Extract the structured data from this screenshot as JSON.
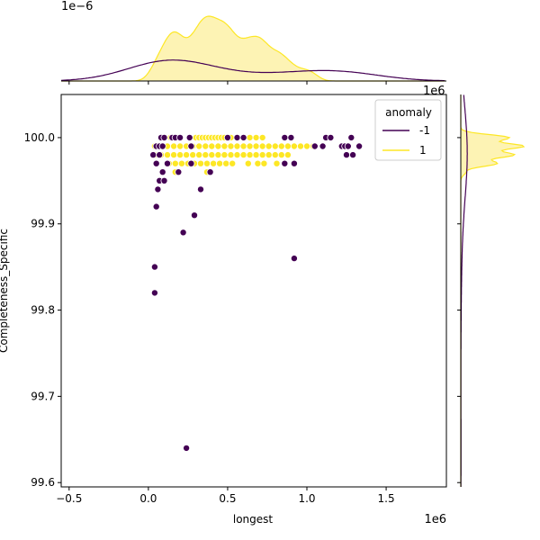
{
  "chart_data": {
    "type": "scatter",
    "xlabel": "longest",
    "ylabel": "Completeness_Specific",
    "x_offset_text": "1e6",
    "x_scale": 1000000,
    "xlim": [
      -0.55,
      1.88
    ],
    "ylim": [
      99.595,
      100.05
    ],
    "x_ticks": [
      -0.5,
      0.0,
      0.5,
      1.0,
      1.5
    ],
    "x_tick_labels": [
      "−0.5",
      "0.0",
      "0.5",
      "1.0",
      "1.5"
    ],
    "y_ticks": [
      99.6,
      99.7,
      99.8,
      99.9,
      100.0
    ],
    "y_tick_labels": [
      "99.6",
      "99.7",
      "99.8",
      "99.9",
      "100.0"
    ],
    "top_marginal": {
      "offset_text": "1e−6",
      "fill": "#fdf3b4"
    },
    "right_marginal": {
      "offset_text": "1e6",
      "fill": "#fdf3b4"
    },
    "legend": {
      "title": "anomaly",
      "position": "upper right",
      "entries": [
        {
          "label": "-1",
          "color": "#440154"
        },
        {
          "label": "1",
          "color": "#fde725"
        }
      ]
    },
    "series": [
      {
        "name": "1",
        "color": "#fde725",
        "points": [
          [
            0.1,
            100.0
          ],
          [
            0.14,
            100.0
          ],
          [
            0.18,
            100.0
          ],
          [
            0.3,
            100.0
          ],
          [
            0.32,
            100.0
          ],
          [
            0.34,
            100.0
          ],
          [
            0.36,
            100.0
          ],
          [
            0.38,
            100.0
          ],
          [
            0.4,
            100.0
          ],
          [
            0.42,
            100.0
          ],
          [
            0.44,
            100.0
          ],
          [
            0.46,
            100.0
          ],
          [
            0.48,
            100.0
          ],
          [
            0.5,
            100.0
          ],
          [
            0.52,
            100.0
          ],
          [
            0.56,
            100.0
          ],
          [
            0.6,
            100.0
          ],
          [
            0.64,
            100.0
          ],
          [
            0.68,
            100.0
          ],
          [
            0.72,
            100.0
          ],
          [
            0.04,
            99.99
          ],
          [
            0.08,
            99.99
          ],
          [
            0.12,
            99.99
          ],
          [
            0.16,
            99.99
          ],
          [
            0.2,
            99.99
          ],
          [
            0.24,
            99.99
          ],
          [
            0.28,
            99.99
          ],
          [
            0.32,
            99.99
          ],
          [
            0.36,
            99.99
          ],
          [
            0.4,
            99.99
          ],
          [
            0.44,
            99.99
          ],
          [
            0.48,
            99.99
          ],
          [
            0.52,
            99.99
          ],
          [
            0.56,
            99.99
          ],
          [
            0.6,
            99.99
          ],
          [
            0.64,
            99.99
          ],
          [
            0.68,
            99.99
          ],
          [
            0.72,
            99.99
          ],
          [
            0.76,
            99.99
          ],
          [
            0.8,
            99.99
          ],
          [
            0.84,
            99.99
          ],
          [
            0.88,
            99.99
          ],
          [
            0.92,
            99.99
          ],
          [
            0.96,
            99.99
          ],
          [
            1.0,
            99.99
          ],
          [
            1.04,
            99.99
          ],
          [
            0.04,
            99.98
          ],
          [
            0.08,
            99.98
          ],
          [
            0.12,
            99.98
          ],
          [
            0.16,
            99.98
          ],
          [
            0.2,
            99.98
          ],
          [
            0.24,
            99.98
          ],
          [
            0.28,
            99.98
          ],
          [
            0.32,
            99.98
          ],
          [
            0.36,
            99.98
          ],
          [
            0.4,
            99.98
          ],
          [
            0.44,
            99.98
          ],
          [
            0.48,
            99.98
          ],
          [
            0.52,
            99.98
          ],
          [
            0.56,
            99.98
          ],
          [
            0.6,
            99.98
          ],
          [
            0.64,
            99.98
          ],
          [
            0.68,
            99.98
          ],
          [
            0.72,
            99.98
          ],
          [
            0.76,
            99.98
          ],
          [
            0.8,
            99.98
          ],
          [
            0.84,
            99.98
          ],
          [
            0.88,
            99.98
          ],
          [
            0.13,
            99.97
          ],
          [
            0.17,
            99.97
          ],
          [
            0.21,
            99.97
          ],
          [
            0.25,
            99.97
          ],
          [
            0.29,
            99.97
          ],
          [
            0.33,
            99.97
          ],
          [
            0.37,
            99.97
          ],
          [
            0.41,
            99.97
          ],
          [
            0.45,
            99.97
          ],
          [
            0.49,
            99.97
          ],
          [
            0.53,
            99.97
          ],
          [
            0.63,
            99.97
          ],
          [
            0.69,
            99.97
          ],
          [
            0.73,
            99.97
          ],
          [
            0.81,
            99.97
          ],
          [
            0.17,
            99.96
          ],
          [
            0.37,
            99.96
          ]
        ]
      },
      {
        "name": "-1",
        "color": "#440154",
        "points": [
          [
            0.08,
            100.0
          ],
          [
            0.1,
            100.0
          ],
          [
            0.15,
            100.0
          ],
          [
            0.17,
            100.0
          ],
          [
            0.2,
            100.0
          ],
          [
            0.26,
            100.0
          ],
          [
            0.5,
            100.0
          ],
          [
            0.56,
            100.0
          ],
          [
            0.6,
            100.0
          ],
          [
            0.86,
            100.0
          ],
          [
            0.9,
            100.0
          ],
          [
            1.12,
            100.0
          ],
          [
            1.15,
            100.0
          ],
          [
            1.28,
            100.0
          ],
          [
            0.05,
            99.99
          ],
          [
            0.07,
            99.99
          ],
          [
            0.09,
            99.99
          ],
          [
            0.27,
            99.99
          ],
          [
            1.05,
            99.99
          ],
          [
            1.1,
            99.99
          ],
          [
            1.22,
            99.99
          ],
          [
            1.24,
            99.99
          ],
          [
            1.26,
            99.99
          ],
          [
            1.33,
            99.99
          ],
          [
            0.03,
            99.98
          ],
          [
            0.07,
            99.98
          ],
          [
            1.25,
            99.98
          ],
          [
            1.29,
            99.98
          ],
          [
            0.05,
            99.97
          ],
          [
            0.12,
            99.97
          ],
          [
            0.27,
            99.97
          ],
          [
            0.86,
            99.97
          ],
          [
            0.92,
            99.97
          ],
          [
            0.09,
            99.96
          ],
          [
            0.19,
            99.96
          ],
          [
            0.39,
            99.96
          ],
          [
            0.07,
            99.95
          ],
          [
            0.1,
            99.95
          ],
          [
            0.06,
            99.94
          ],
          [
            0.33,
            99.94
          ],
          [
            0.05,
            99.92
          ],
          [
            0.29,
            99.91
          ],
          [
            0.22,
            99.89
          ],
          [
            0.04,
            99.85
          ],
          [
            0.92,
            99.86
          ],
          [
            0.04,
            99.82
          ],
          [
            0.24,
            99.64
          ]
        ]
      }
    ]
  }
}
